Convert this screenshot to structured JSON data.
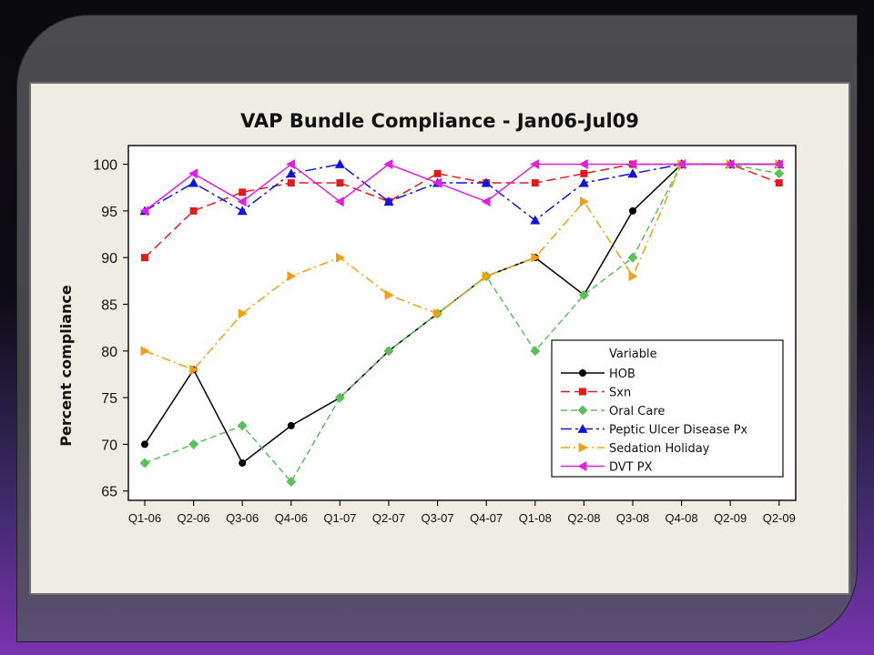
{
  "chart_data": {
    "type": "line",
    "title": "VAP Bundle Compliance - Jan06-Jul09",
    "xlabel": "",
    "ylabel": "Percent compliance",
    "categories": [
      "Q1-06",
      "Q2-06",
      "Q3-06",
      "Q4-06",
      "Q1-07",
      "Q2-07",
      "Q3-07",
      "Q4-07",
      "Q1-08",
      "Q2-08",
      "Q3-08",
      "Q4-08",
      "Q2-09",
      "Q2-09"
    ],
    "ylim": [
      64,
      102
    ],
    "yticks": [
      65,
      70,
      75,
      80,
      85,
      90,
      95,
      100
    ],
    "grid": false,
    "legend_title": "Variable",
    "legend_position": "bottom-right",
    "series": [
      {
        "name": "HOB",
        "color": "#000000",
        "dash": "",
        "marker": "circle",
        "values": [
          70,
          78,
          68,
          72,
          75,
          80,
          84,
          88,
          90,
          86,
          95,
          100,
          100,
          100
        ]
      },
      {
        "name": "Sxn",
        "color": "#e21a1a",
        "dash": "10,5",
        "marker": "square",
        "values": [
          90,
          95,
          97,
          98,
          98,
          96,
          99,
          98,
          98,
          99,
          100,
          100,
          100,
          98
        ]
      },
      {
        "name": "Oral Care",
        "color": "#5bbf5b",
        "dash": "7,4",
        "marker": "diamond",
        "values": [
          68,
          70,
          72,
          66,
          75,
          80,
          84,
          88,
          80,
          86,
          90,
          100,
          100,
          99
        ]
      },
      {
        "name": "Peptic Ulcer Disease Px",
        "color": "#1212dd",
        "dash": "12,4,3,4",
        "marker": "triangle-up",
        "values": [
          95,
          98,
          95,
          99,
          100,
          96,
          98,
          98,
          94,
          98,
          99,
          100,
          100,
          100
        ]
      },
      {
        "name": "Sedation Holiday",
        "color": "#f0a010",
        "dash": "10,4,2,4",
        "marker": "triangle-right",
        "values": [
          80,
          78,
          84,
          88,
          90,
          86,
          84,
          88,
          90,
          96,
          88,
          100,
          100,
          100
        ]
      },
      {
        "name": "DVT PX",
        "color": "#e020e0",
        "dash": "",
        "marker": "triangle-left",
        "values": [
          95,
          99,
          96,
          100,
          96,
          100,
          98,
          96,
          100,
          100,
          100,
          100,
          100,
          100
        ]
      }
    ]
  }
}
